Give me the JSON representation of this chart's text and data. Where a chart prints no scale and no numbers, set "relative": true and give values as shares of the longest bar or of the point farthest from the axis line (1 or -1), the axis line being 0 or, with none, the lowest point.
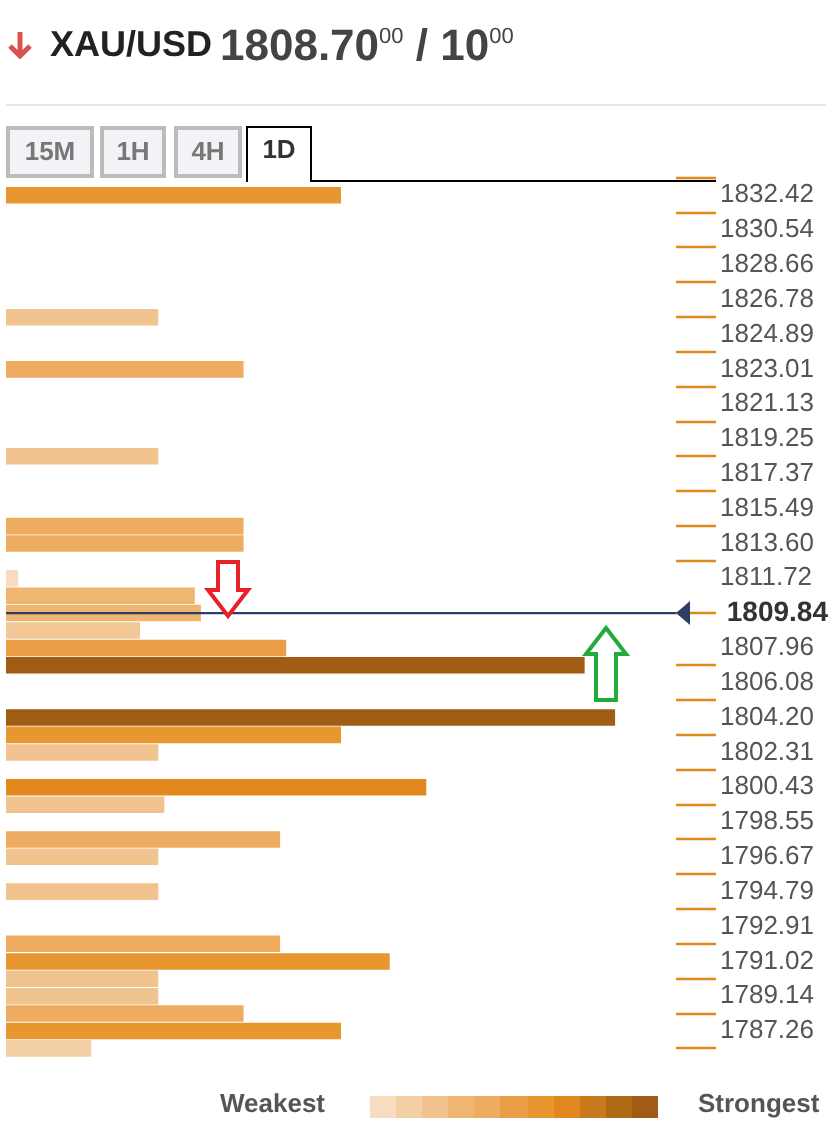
{
  "chart_data": {
    "type": "bar",
    "orientation": "horizontal",
    "relative": true,
    "title": "XAU/USD",
    "subtitle": "1808.70$^{00}$ / 10$^{00}$",
    "annotations": [
      "15M",
      "1H",
      "4H",
      "1D",
      "Weakest",
      "Strongest"
    ],
    "x": [
      1832.42,
      1825.83,
      1823.01,
      1818.31,
      1814.54,
      1813.6,
      1811.72,
      1810.78,
      1809.84,
      1808.9,
      1807.96,
      1807.02,
      1804.2,
      1803.26,
      1802.31,
      1800.43,
      1799.49,
      1797.61,
      1796.67,
      1794.79,
      1791.97,
      1791.02,
      1790.08,
      1789.14,
      1788.2,
      1787.26,
      1786.32
    ],
    "values": [
      0.55,
      0.25,
      0.39,
      0.25,
      0.39,
      0.39,
      0.02,
      0.31,
      0.32,
      0.22,
      0.46,
      0.95,
      1,
      0.55,
      0.25,
      0.69,
      0.26,
      0.45,
      0.25,
      0.25,
      0.45,
      0.63,
      0.25,
      0.25,
      0.39,
      0.55,
      0.14
    ],
    "colors": [
      "#e8962f",
      "#f1c38e",
      "#edac60",
      "#f1c38e",
      "#edac60",
      "#edac60",
      "#f8dcc0",
      "#eeb670",
      "#eeb670",
      "#f3c796",
      "#e99d44",
      "#a05c14",
      "#a05c14",
      "#e8962f",
      "#f1c38e",
      "#e3881e",
      "#f1c38e",
      "#edac60",
      "#f1c38e",
      "#f1c38e",
      "#edac60",
      "#e8962f",
      "#f1c38e",
      "#f1c38e",
      "#edac60",
      "#e8962f",
      "#f3cfa5"
    ],
    "ylim": [
      1785.85,
      1832.89
    ],
    "yticks": [
      1832.42,
      1830.54,
      1828.66,
      1826.78,
      1824.89,
      1823.01,
      1821.13,
      1819.25,
      1817.37,
      1815.49,
      {
        "value": 1813.6,
        "label": "1813.60"
      },
      1811.72,
      1807.96,
      1806.08,
      {
        "value": 1804.2,
        "label": "1804.20"
      },
      1802.31,
      1800.43,
      1798.55,
      1796.67,
      1794.79,
      1792.91,
      1791.02,
      1789.14,
      1787.26
    ],
    "ref_lines": [
      {
        "axis": "y",
        "value": 1809.84,
        "label": "1809.84",
        "color": "#2b3f66"
      }
    ],
    "grid": false,
    "legend": false
  }
}
